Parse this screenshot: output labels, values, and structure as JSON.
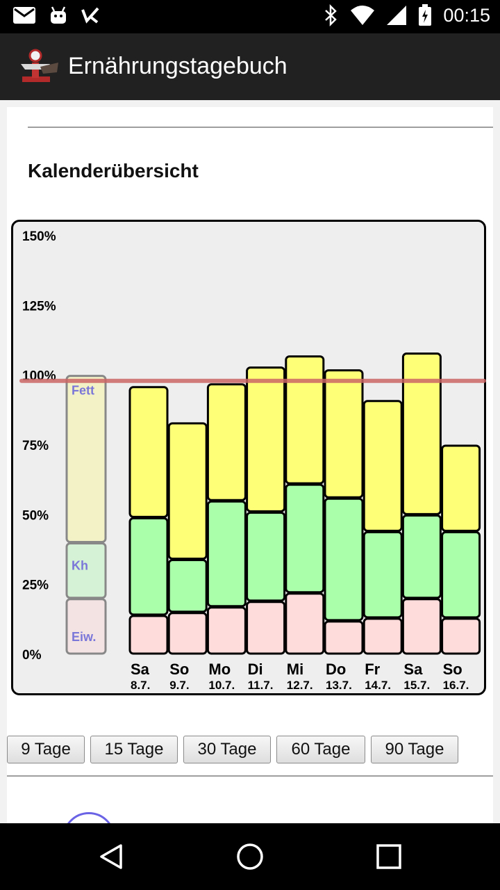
{
  "status_bar": {
    "time": "00:15",
    "left_icons": [
      "mail-icon",
      "android-icon",
      "check-icon"
    ],
    "right_icons": [
      "bluetooth-icon",
      "wifi-icon",
      "signal-icon",
      "battery-icon"
    ]
  },
  "app_bar": {
    "title": "Ernährungstagebuch",
    "icon": "scale-icon"
  },
  "section": {
    "title": "Kalenderübersicht"
  },
  "chart_data": {
    "type": "bar",
    "stacked": true,
    "categories": [
      "Sa",
      "So",
      "Mo",
      "Di",
      "Mi",
      "Do",
      "Fr",
      "Sa",
      "So"
    ],
    "dates": [
      "8.7.",
      "9.7.",
      "10.7.",
      "11.7.",
      "12.7.",
      "13.7.",
      "14.7.",
      "15.7.",
      "16.7."
    ],
    "series": [
      {
        "name": "Eiw.",
        "color": "#ffdcdc",
        "values": [
          14,
          15,
          17,
          19,
          22,
          12,
          13,
          20,
          13
        ]
      },
      {
        "name": "Kh",
        "color": "#aaffaa",
        "values": [
          35,
          19,
          38,
          32,
          39,
          44,
          31,
          30,
          31
        ]
      },
      {
        "name": "Fett",
        "color": "#ffff77",
        "values": [
          47,
          49,
          42,
          52,
          46,
          46,
          47,
          58,
          31
        ]
      }
    ],
    "legend_reference": [
      {
        "name": "Eiw.",
        "color": "#f3e3e3",
        "value": 20
      },
      {
        "name": "Kh",
        "color": "#d6f2d6",
        "value": 20
      },
      {
        "name": "Fett",
        "color": "#f2f2c6",
        "value": 60
      }
    ],
    "legend_text_color": "#7b77d9",
    "y_ticks": [
      "0%",
      "25%",
      "50%",
      "75%",
      "100%",
      "125%",
      "150%"
    ],
    "ylim": [
      0,
      150
    ],
    "reference_line": {
      "value": 98,
      "color": "#cc6666"
    }
  },
  "range_buttons": [
    "9 Tage",
    "15 Tage",
    "30 Tage",
    "60 Tage",
    "90 Tage"
  ],
  "nav_bar": {
    "icons": [
      "back-icon",
      "home-icon",
      "recents-icon"
    ]
  }
}
